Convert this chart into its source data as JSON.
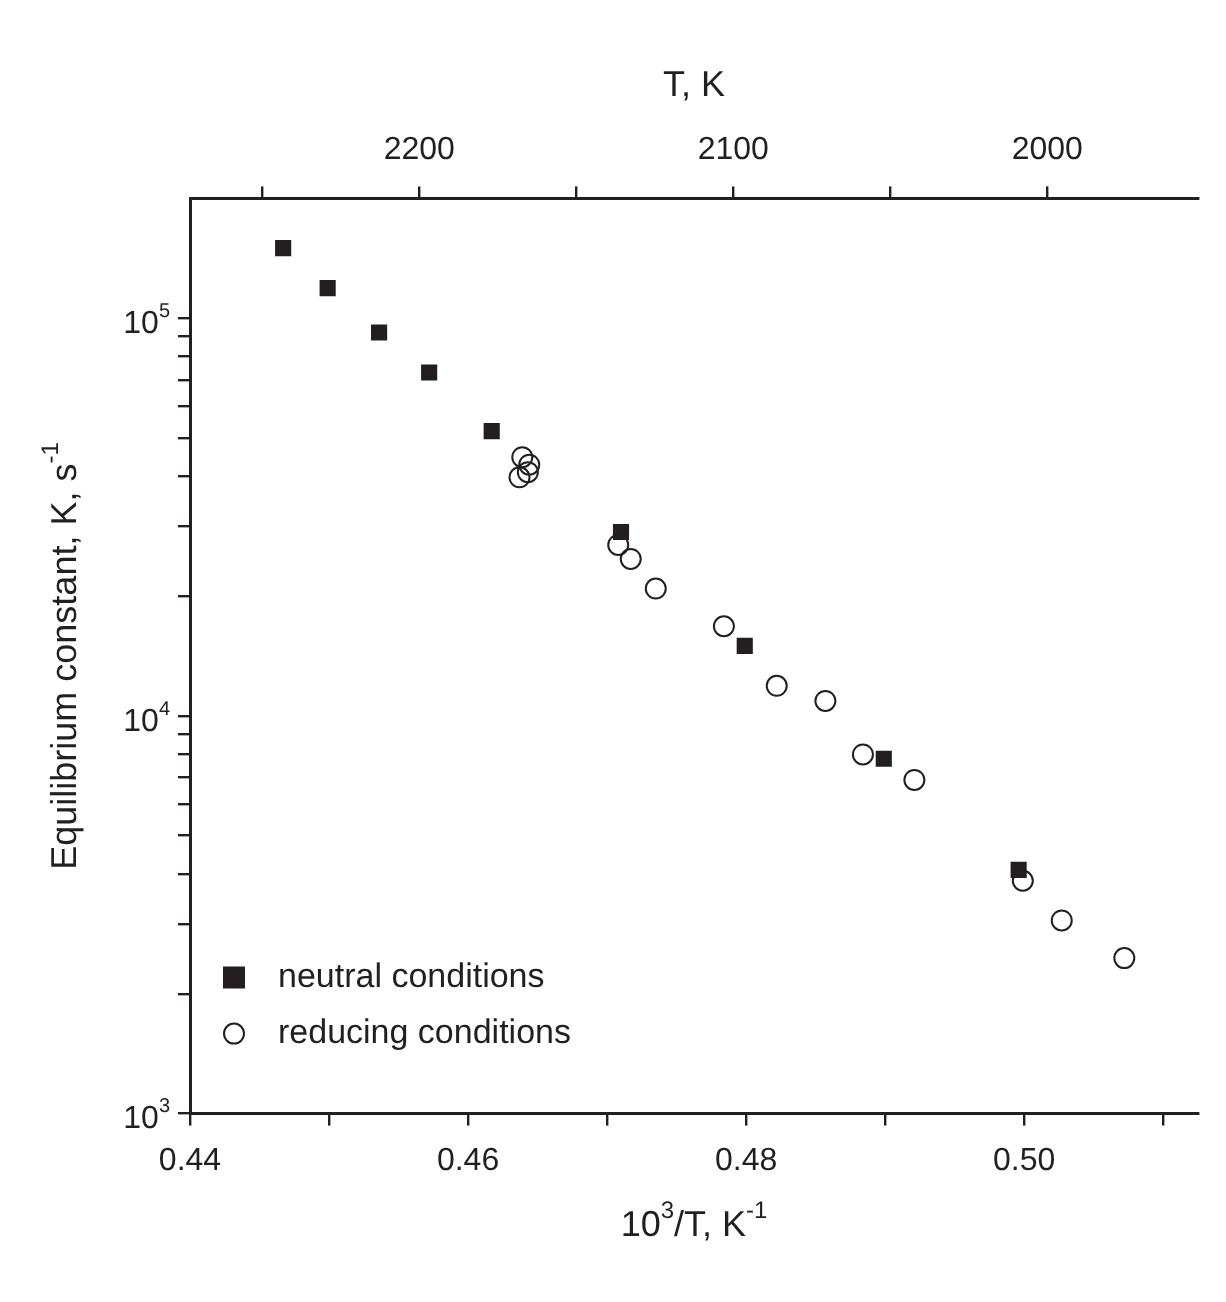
{
  "chart_data": {
    "type": "scatter",
    "xlabel": "10$^{3}$/T, K$^{-1}$",
    "ylabel": "Equilibrium constant, K, s$^{-1}$",
    "x2label": "T, K",
    "series": [
      {
        "name": "neutral conditions",
        "color": "#231f20",
        "marker": "square",
        "x": [
          0.4467,
          0.4499,
          0.4536,
          0.4572,
          0.4617,
          0.471,
          0.4799,
          0.4899,
          0.4996
        ],
        "values": [
          150000,
          119000,
          92000,
          73000,
          52000,
          29000,
          15000,
          7800,
          4100
        ]
      },
      {
        "name": "reducing conditions",
        "color": "#231f20",
        "marker": "circle",
        "x": [
          0.4639,
          0.4644,
          0.4643,
          0.4637,
          0.4708,
          0.4717,
          0.4735,
          0.4784,
          0.4822,
          0.4857,
          0.4884,
          0.4921,
          0.4999,
          0.5027,
          0.5072
        ],
        "values": [
          44700,
          42800,
          41000,
          39800,
          26900,
          24800,
          20900,
          16800,
          11900,
          10900,
          8000,
          6900,
          3850,
          3060,
          2460
        ]
      }
    ],
    "xlim": [
      0.44,
      0.5125
    ],
    "xticks": [
      {
        "value": 0.44,
        "label": "0.44"
      },
      {
        "value": 0.45,
        "label": null
      },
      {
        "value": 0.46,
        "label": "0.46"
      },
      {
        "value": 0.47,
        "label": null
      },
      {
        "value": 0.48,
        "label": "0.48"
      },
      {
        "value": 0.49,
        "label": null
      },
      {
        "value": 0.5,
        "label": "0.50"
      },
      {
        "value": 0.51,
        "label": null
      }
    ],
    "x2lim": [
      2273,
      1952
    ],
    "x2ticks": [
      {
        "value": 2250,
        "label": null
      },
      2200,
      {
        "value": 2150,
        "label": null
      },
      2100,
      {
        "value": 2050,
        "label": null
      },
      2000
    ],
    "ylim": [
      1000,
      200000
    ],
    "yticks": [
      {
        "value": 1000,
        "label": "10$^{3}$"
      },
      {
        "value": 2000,
        "label": null
      },
      {
        "value": 3000,
        "label": null
      },
      {
        "value": 4000,
        "label": null
      },
      {
        "value": 5000,
        "label": null
      },
      {
        "value": 6000,
        "label": null
      },
      {
        "value": 7000,
        "label": null
      },
      {
        "value": 8000,
        "label": null
      },
      {
        "value": 9000,
        "label": null
      },
      {
        "value": 10000,
        "label": "10$^{4}$"
      },
      {
        "value": 20000,
        "label": null
      },
      {
        "value": 30000,
        "label": null
      },
      {
        "value": 40000,
        "label": null
      },
      {
        "value": 50000,
        "label": null
      },
      {
        "value": 60000,
        "label": null
      },
      {
        "value": 70000,
        "label": null
      },
      {
        "value": 80000,
        "label": null
      },
      {
        "value": 90000,
        "label": null
      },
      {
        "value": 100000,
        "label": "10$^{5}$"
      }
    ],
    "log": true,
    "grid": false,
    "legend": "bottom left"
  }
}
